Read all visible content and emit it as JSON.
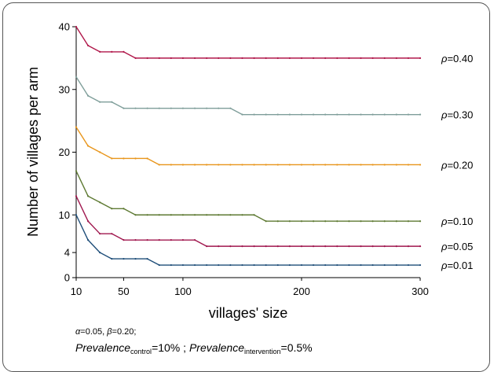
{
  "chart_data": {
    "type": "line",
    "title": "",
    "xlabel": "villages' size",
    "ylabel": "Number of villages per arm",
    "xlim": [
      10,
      300
    ],
    "ylim": [
      0,
      40
    ],
    "x_ticks": [
      10,
      50,
      100,
      200,
      300
    ],
    "y_ticks": [
      0,
      4,
      10,
      20,
      30,
      40
    ],
    "grid": false,
    "legend": "inline-right",
    "series": [
      {
        "name": "ρ=0.40",
        "greek": "ρ",
        "suffix": "=0.40",
        "color": "#b0174a",
        "points": [
          [
            10,
            40
          ],
          [
            20,
            37
          ],
          [
            30,
            36
          ],
          [
            50,
            36
          ],
          [
            60,
            35
          ],
          [
            300,
            35
          ]
        ]
      },
      {
        "name": "ρ=0.30",
        "greek": "ρ",
        "suffix": "=0.30",
        "color": "#7f9e9a",
        "points": [
          [
            10,
            32
          ],
          [
            20,
            29
          ],
          [
            30,
            28
          ],
          [
            40,
            28
          ],
          [
            50,
            27
          ],
          [
            140,
            27
          ],
          [
            150,
            26
          ],
          [
            300,
            26
          ]
        ]
      },
      {
        "name": "ρ=0.20",
        "greek": "ρ",
        "suffix": "=0.20",
        "color": "#e8951a",
        "points": [
          [
            10,
            24
          ],
          [
            20,
            21
          ],
          [
            30,
            20
          ],
          [
            40,
            19
          ],
          [
            70,
            19
          ],
          [
            80,
            18
          ],
          [
            300,
            18
          ]
        ]
      },
      {
        "name": "ρ=0.10",
        "greek": "ρ",
        "suffix": "=0.10",
        "color": "#5e7a33",
        "points": [
          [
            10,
            17
          ],
          [
            20,
            13
          ],
          [
            30,
            12
          ],
          [
            40,
            11
          ],
          [
            50,
            11
          ],
          [
            60,
            10
          ],
          [
            160,
            10
          ],
          [
            170,
            9
          ],
          [
            300,
            9
          ]
        ]
      },
      {
        "name": "ρ=0.05",
        "greek": "ρ",
        "suffix": "=0.05",
        "color": "#a0184f",
        "points": [
          [
            10,
            13
          ],
          [
            20,
            9
          ],
          [
            30,
            7
          ],
          [
            40,
            7
          ],
          [
            50,
            6
          ],
          [
            110,
            6
          ],
          [
            120,
            5
          ],
          [
            300,
            5
          ]
        ]
      },
      {
        "name": "ρ=0.01",
        "greek": "ρ",
        "suffix": "=0.01",
        "color": "#1f4e79",
        "points": [
          [
            10,
            10
          ],
          [
            20,
            6
          ],
          [
            30,
            4
          ],
          [
            40,
            3
          ],
          [
            70,
            3
          ],
          [
            80,
            2
          ],
          [
            300,
            2
          ]
        ]
      }
    ]
  },
  "notes": {
    "line1": {
      "alpha": "α",
      "alpha_val": "=0.05, ",
      "beta": "β",
      "beta_val": "=0.20;"
    },
    "line2": {
      "prev1": "Prevalence",
      "sub1": "control",
      "val1": "=10% ; ",
      "prev2": "Prevalence",
      "sub2": "intervention",
      "val2": "=0.5%"
    }
  }
}
